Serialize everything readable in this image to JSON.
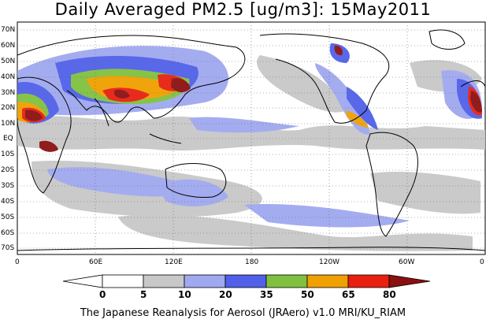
{
  "title": "Daily Averaged PM2.5 [ug/m3]: 15May2011",
  "credit": "The Japanese Reanalysis for Aerosol (JRAero) v1.0 MRI/KU_RIAM",
  "map": {
    "projection": "equirectangular",
    "lon_range": [
      0,
      360
    ],
    "lat_range": [
      -75,
      75
    ],
    "grid": "dotted",
    "lat_ticks": [
      "70N",
      "60N",
      "50N",
      "40N",
      "30N",
      "20N",
      "10N",
      "EQ",
      "10S",
      "20S",
      "30S",
      "40S",
      "50S",
      "60S",
      "70S"
    ],
    "lon_ticks": [
      "0",
      "60E",
      "120E",
      "180",
      "120W",
      "60W",
      "0"
    ]
  },
  "colorbar": {
    "levels": [
      "0",
      "5",
      "10",
      "20",
      "35",
      "50",
      "65",
      "80"
    ],
    "colors": [
      "#ffffff",
      "#c8c8c8",
      "#a0a8f0",
      "#5060e8",
      "#80c040",
      "#f0a000",
      "#e82010",
      "#8b1010"
    ]
  }
}
